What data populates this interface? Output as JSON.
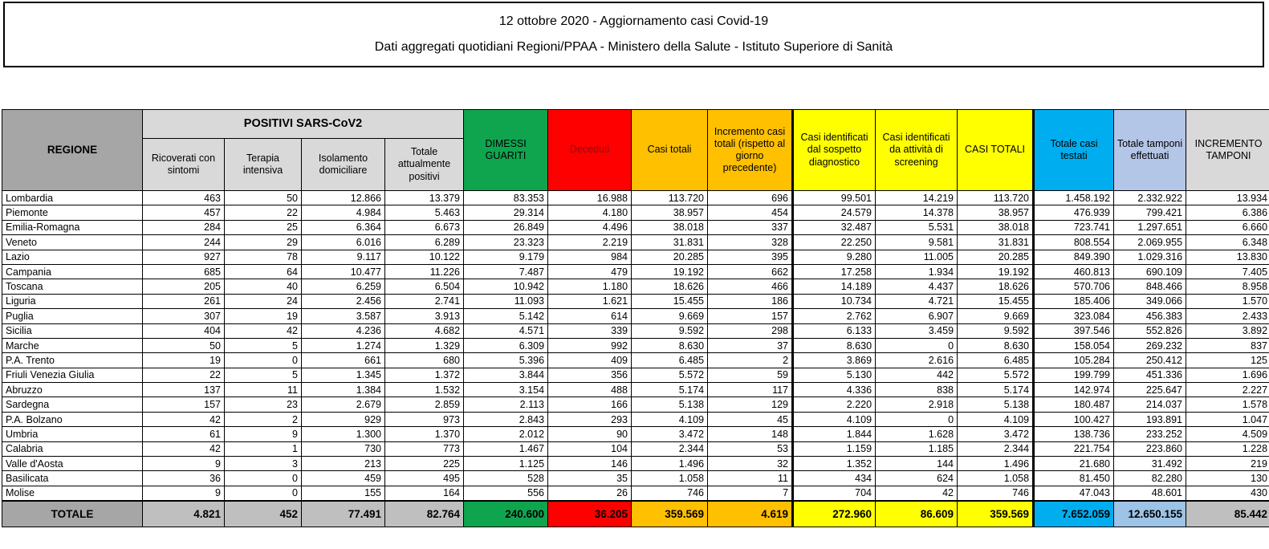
{
  "title": {
    "line1": "12 ottobre 2020 - Aggiornamento casi Covid-19",
    "line2": "Dati aggregati quotidiani Regioni/PPAA - Ministero della Salute - Istituto Superiore di Sanità"
  },
  "table": {
    "header": {
      "regione": "REGIONE",
      "positivi_group": "POSITIVI SARS-CoV2",
      "positivi_sub": [
        "Ricoverati con sintomi",
        "Terapia intensiva",
        "Isolamento domiciliare",
        "Totale attualmente positivi"
      ],
      "dimessi": "DIMESSI GUARITI",
      "deceduti": "Deceduti",
      "casi_totali": "Casi totali",
      "incremento": "Incremento casi totali (rispetto al giorno precedente)",
      "sospetto": "Casi identificati dal sospetto diagnostico",
      "screening": "Casi identificati da attività di screening",
      "casi_totali_caps": "CASI TOTALI",
      "testati": "Totale casi testati",
      "tamponi": "Totale tamponi effettuati",
      "incr_tamponi": "INCREMENTO TAMPONI"
    },
    "rows": [
      [
        "Lombardia",
        "463",
        "50",
        "12.866",
        "13.379",
        "83.353",
        "16.988",
        "113.720",
        "696",
        "99.501",
        "14.219",
        "113.720",
        "1.458.192",
        "2.332.922",
        "13.934"
      ],
      [
        "Piemonte",
        "457",
        "22",
        "4.984",
        "5.463",
        "29.314",
        "4.180",
        "38.957",
        "454",
        "24.579",
        "14.378",
        "38.957",
        "476.939",
        "799.421",
        "6.386"
      ],
      [
        "Emilia-Romagna",
        "284",
        "25",
        "6.364",
        "6.673",
        "26.849",
        "4.496",
        "38.018",
        "337",
        "32.487",
        "5.531",
        "38.018",
        "723.741",
        "1.297.651",
        "6.660"
      ],
      [
        "Veneto",
        "244",
        "29",
        "6.016",
        "6.289",
        "23.323",
        "2.219",
        "31.831",
        "328",
        "22.250",
        "9.581",
        "31.831",
        "808.554",
        "2.069.955",
        "6.348"
      ],
      [
        "Lazio",
        "927",
        "78",
        "9.117",
        "10.122",
        "9.179",
        "984",
        "20.285",
        "395",
        "9.280",
        "11.005",
        "20.285",
        "849.390",
        "1.029.316",
        "13.830"
      ],
      [
        "Campania",
        "685",
        "64",
        "10.477",
        "11.226",
        "7.487",
        "479",
        "19.192",
        "662",
        "17.258",
        "1.934",
        "19.192",
        "460.813",
        "690.109",
        "7.405"
      ],
      [
        "Toscana",
        "205",
        "40",
        "6.259",
        "6.504",
        "10.942",
        "1.180",
        "18.626",
        "466",
        "14.189",
        "4.437",
        "18.626",
        "570.706",
        "848.466",
        "8.958"
      ],
      [
        "Liguria",
        "261",
        "24",
        "2.456",
        "2.741",
        "11.093",
        "1.621",
        "15.455",
        "186",
        "10.734",
        "4.721",
        "15.455",
        "185.406",
        "349.066",
        "1.570"
      ],
      [
        "Puglia",
        "307",
        "19",
        "3.587",
        "3.913",
        "5.142",
        "614",
        "9.669",
        "157",
        "2.762",
        "6.907",
        "9.669",
        "323.084",
        "456.383",
        "2.433"
      ],
      [
        "Sicilia",
        "404",
        "42",
        "4.236",
        "4.682",
        "4.571",
        "339",
        "9.592",
        "298",
        "6.133",
        "3.459",
        "9.592",
        "397.546",
        "552.826",
        "3.892"
      ],
      [
        "Marche",
        "50",
        "5",
        "1.274",
        "1.329",
        "6.309",
        "992",
        "8.630",
        "37",
        "8.630",
        "0",
        "8.630",
        "158.054",
        "269.232",
        "837"
      ],
      [
        "P.A. Trento",
        "19",
        "0",
        "661",
        "680",
        "5.396",
        "409",
        "6.485",
        "2",
        "3.869",
        "2.616",
        "6.485",
        "105.284",
        "250.412",
        "125"
      ],
      [
        "Friuli Venezia Giulia",
        "22",
        "5",
        "1.345",
        "1.372",
        "3.844",
        "356",
        "5.572",
        "59",
        "5.130",
        "442",
        "5.572",
        "199.799",
        "451.336",
        "1.696"
      ],
      [
        "Abruzzo",
        "137",
        "11",
        "1.384",
        "1.532",
        "3.154",
        "488",
        "5.174",
        "117",
        "4.336",
        "838",
        "5.174",
        "142.974",
        "225.647",
        "2.227"
      ],
      [
        "Sardegna",
        "157",
        "23",
        "2.679",
        "2.859",
        "2.113",
        "166",
        "5.138",
        "129",
        "2.220",
        "2.918",
        "5.138",
        "180.487",
        "214.037",
        "1.578"
      ],
      [
        "P.A. Bolzano",
        "42",
        "2",
        "929",
        "973",
        "2.843",
        "293",
        "4.109",
        "45",
        "4.109",
        "0",
        "4.109",
        "100.427",
        "193.891",
        "1.047"
      ],
      [
        "Umbria",
        "61",
        "9",
        "1.300",
        "1.370",
        "2.012",
        "90",
        "3.472",
        "148",
        "1.844",
        "1.628",
        "3.472",
        "138.736",
        "233.252",
        "4.509"
      ],
      [
        "Calabria",
        "42",
        "1",
        "730",
        "773",
        "1.467",
        "104",
        "2.344",
        "53",
        "1.159",
        "1.185",
        "2.344",
        "221.754",
        "223.860",
        "1.228"
      ],
      [
        "Valle d'Aosta",
        "9",
        "3",
        "213",
        "225",
        "1.125",
        "146",
        "1.496",
        "32",
        "1.352",
        "144",
        "1.496",
        "21.680",
        "31.492",
        "219"
      ],
      [
        "Basilicata",
        "36",
        "0",
        "459",
        "495",
        "528",
        "35",
        "1.058",
        "11",
        "434",
        "624",
        "1.058",
        "81.450",
        "82.280",
        "130"
      ],
      [
        "Molise",
        "9",
        "0",
        "155",
        "164",
        "556",
        "26",
        "746",
        "7",
        "704",
        "42",
        "746",
        "47.043",
        "48.601",
        "430"
      ]
    ],
    "total": [
      "TOTALE",
      "4.821",
      "452",
      "77.491",
      "82.764",
      "240.600",
      "36.205",
      "359.569",
      "4.619",
      "272.960",
      "86.609",
      "359.569",
      "7.652.059",
      "12.650.155",
      "85.442"
    ]
  },
  "colors": {
    "header_gray_dark": "#A6A6A6",
    "header_gray_light": "#D9D9D9",
    "green": "#0FA54F",
    "red": "#FF0000",
    "deceduti_text": "#7E1416",
    "orange": "#FFC000",
    "yellow": "#FFFF00",
    "cyan": "#00AEEF",
    "light_blue_header": "#B4C6E7",
    "light_blue_total": "#9DC3E6",
    "total_row_gray": "#BFBFBF"
  }
}
